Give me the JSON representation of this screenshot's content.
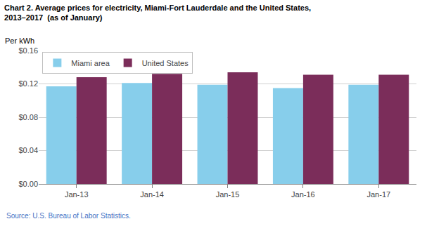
{
  "chart_data": {
    "type": "bar",
    "title": "Chart 2. Average prices for electricity, Miami-Fort Lauderdale and the United States,\n2013–2017  (as of January)",
    "ylabel": "Per kWh",
    "source": "Source: U.S. Bureau of Labor Statistics.",
    "categories": [
      "Jan-13",
      "Jan-14",
      "Jan-15",
      "Jan-16",
      "Jan-17"
    ],
    "series": [
      {
        "name": "Miami area",
        "color": "#87CEEB",
        "values": [
          0.117,
          0.121,
          0.119,
          0.115,
          0.119
        ]
      },
      {
        "name": "United States",
        "color": "#7B2D5A",
        "values": [
          0.128,
          0.132,
          0.134,
          0.131,
          0.131
        ]
      }
    ],
    "ylim": [
      0.0,
      0.16
    ],
    "yticks": [
      {
        "value": 0.0,
        "label": "$0.00"
      },
      {
        "value": 0.04,
        "label": "$0.04"
      },
      {
        "value": 0.08,
        "label": "$0.08"
      },
      {
        "value": 0.12,
        "label": "$0.12"
      },
      {
        "value": 0.16,
        "label": "$0.16"
      }
    ],
    "grid": true,
    "legend": "upper left"
  }
}
